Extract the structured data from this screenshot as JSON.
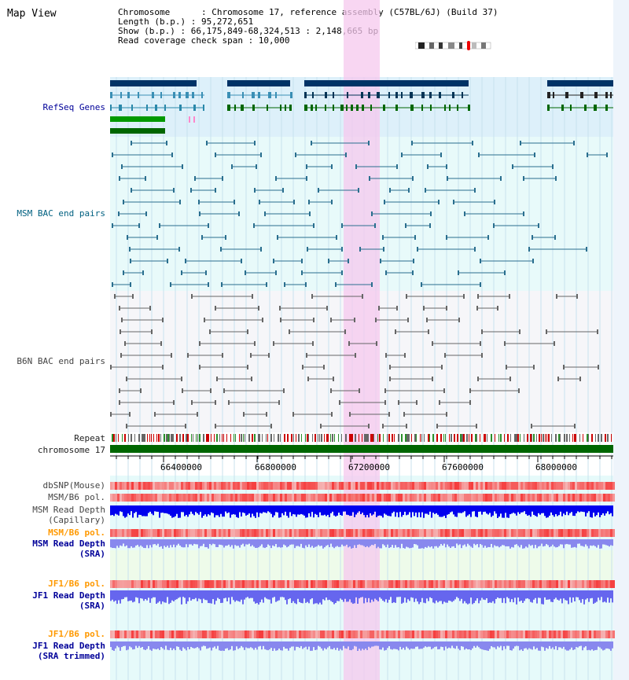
{
  "title": "Map View",
  "info": {
    "line1": "Chromosome      : Chromosome 17, reference assembly (C57BL/6J) (Build 37)",
    "line2": "Length (b.p.) : 95,272,651",
    "line3": "Show (b.p.) : 66,175,849-68,324,513 : 2,148,665 bp",
    "line4": "Read coverage check span : 10,000"
  },
  "tracks": {
    "refseq": "RefSeq Genes",
    "msm_bac": "MSM BAC end pairs",
    "b6n_bac": "B6N BAC end pairs",
    "repeat": "Repeat",
    "chromosome": "chromosome 17",
    "dbsnp": "dbSNP(Mouse)",
    "msm_b6_pol": "MSM/B6 pol.",
    "msm_depth_cap_1": "MSM Read Depth",
    "msm_depth_cap_2": "(Capillary)",
    "msm_b6_pol_2": "MSM/B6 pol.",
    "msm_depth_sra_1": "MSM Read Depth",
    "msm_depth_sra_2": "(SRA)",
    "jf1_pol_1": "JF1/B6 pol.",
    "jf1_depth_1": "JF1 Read Depth",
    "jf1_depth_2": "(SRA)",
    "jf1_pol_2": "JF1/B6 pol.",
    "jf1_trim_1": "JF1 Read Depth",
    "jf1_trim_2": "(SRA trimmed)"
  },
  "axis_ticks": [
    "66400000",
    "66800000",
    "67200000",
    "67600000",
    "68000000"
  ],
  "colors": {
    "refseq_bg": "#ddf0fa",
    "msm_bg": "#e6fafa",
    "highlight": "#f8d8f4",
    "chromosome": "#006600",
    "depth_cap": "#0000ee",
    "depth_sra": "#8888ee",
    "pol": "#ee3333"
  }
}
